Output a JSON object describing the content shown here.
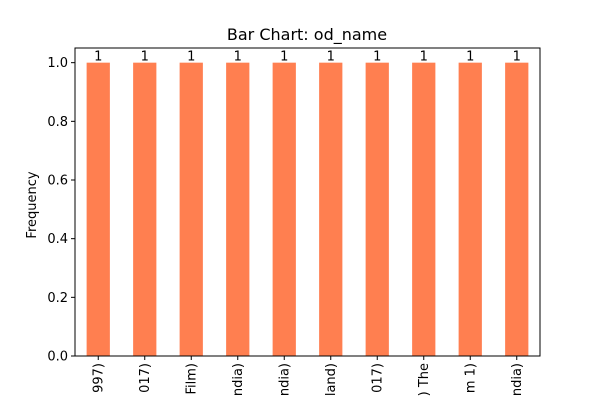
{
  "chart_data": {
    "type": "bar",
    "title": "Bar Chart: od_name",
    "xlabel": "",
    "ylabel": "Frequency",
    "categories": [
      "997)",
      "017)",
      "Film)",
      "ndia)",
      "ndia)",
      "land)",
      "017)",
      ") The",
      "m 1)",
      "ndia)"
    ],
    "values": [
      1,
      1,
      1,
      1,
      1,
      1,
      1,
      1,
      1,
      1
    ],
    "data_labels": [
      "1",
      "1",
      "1",
      "1",
      "1",
      "1",
      "1",
      "1",
      "1",
      "1"
    ],
    "ylim": [
      0,
      1.05
    ],
    "yticks": [
      0.0,
      0.2,
      0.4,
      0.6,
      0.8,
      1.0
    ],
    "ytick_labels": [
      "0.0",
      "0.2",
      "0.4",
      "0.6",
      "0.8",
      "1.0"
    ],
    "grid": false,
    "bar_color": "#ff7f50"
  }
}
